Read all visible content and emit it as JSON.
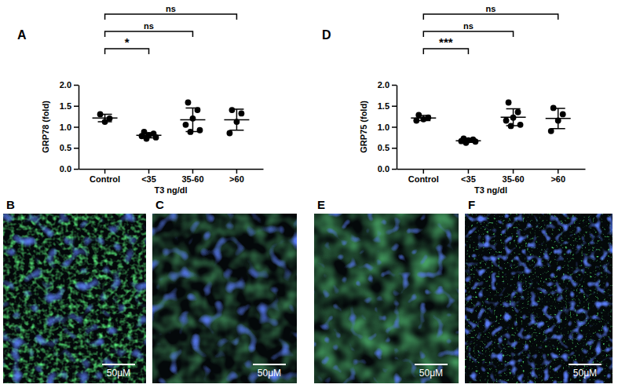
{
  "chart_data": [
    {
      "type": "scatter",
      "panel_label": "A",
      "categories": [
        "Control",
        "<35",
        "35-60",
        ">60"
      ],
      "values": [
        [
          1.3,
          1.2,
          1.12
        ],
        [
          0.88,
          0.84,
          0.8,
          0.78,
          0.75,
          0.72
        ],
        [
          1.58,
          1.4,
          1.2,
          1.05,
          0.92,
          0.88
        ],
        [
          1.4,
          1.32,
          1.12,
          0.85
        ]
      ],
      "mean": [
        1.21,
        0.8,
        1.17,
        1.17
      ],
      "error": [
        0.09,
        0.06,
        0.28,
        0.25
      ],
      "x_label": "T3 ng/dl",
      "y_label": "GRP78  (fold)",
      "ylim": [
        0,
        2
      ],
      "yticks": [
        {
          "value": 0,
          "label": "0.0"
        },
        0.5,
        {
          "value": 1,
          "label": "1.0"
        },
        1.5,
        {
          "value": 2,
          "label": "2.0"
        }
      ],
      "color": "#000000",
      "marker": "circle",
      "annotations": [
        {
          "from": 0,
          "to": 1,
          "text": "*"
        },
        {
          "from": 0,
          "to": 2,
          "text": "ns"
        },
        {
          "from": 0,
          "to": 3,
          "text": "ns"
        }
      ]
    },
    {
      "type": "scatter",
      "panel_label": "D",
      "categories": [
        "Control",
        "<35",
        "35-60",
        ">60"
      ],
      "values": [
        [
          1.28,
          1.22,
          1.18,
          1.15
        ],
        [
          0.72,
          0.7,
          0.68,
          0.66,
          0.65,
          0.62
        ],
        [
          1.58,
          1.35,
          1.22,
          1.15,
          1.05,
          1.02
        ],
        [
          1.45,
          1.3,
          1.15,
          0.9
        ]
      ],
      "mean": [
        1.21,
        0.67,
        1.23,
        1.2
      ],
      "error": [
        0.06,
        0.04,
        0.2,
        0.24
      ],
      "x_label": "T3 ng/dl",
      "y_label": "GRP75  (fold)",
      "ylim": [
        0,
        2
      ],
      "yticks": [
        {
          "value": 0,
          "label": "0.0"
        },
        0.5,
        {
          "value": 1,
          "label": "1.0"
        },
        1.5,
        {
          "value": 2,
          "label": "2.0"
        }
      ],
      "color": "#000000",
      "marker": "circle",
      "annotations": [
        {
          "from": 0,
          "to": 1,
          "text": "***"
        },
        {
          "from": 0,
          "to": 2,
          "text": "ns"
        },
        {
          "from": 0,
          "to": 3,
          "text": "ns"
        }
      ]
    }
  ],
  "panels": [
    {
      "panel_label": "B",
      "scale_bar": "50μM"
    },
    {
      "panel_label": "C",
      "scale_bar": "50μM"
    },
    {
      "panel_label": "E",
      "scale_bar": "50μM"
    },
    {
      "panel_label": "F",
      "scale_bar": "50μM"
    }
  ]
}
